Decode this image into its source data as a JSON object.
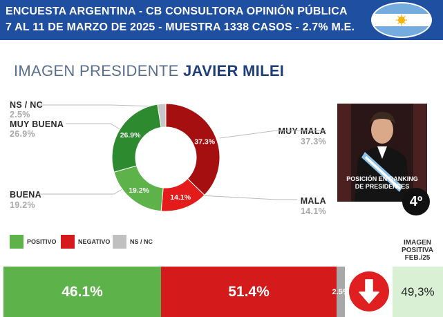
{
  "header": {
    "line1": "ENCUESTA ARGENTINA - CB CONSULTORA OPINIÓN PÚBLICA",
    "line2": "7 AL 11 DE MARZO  DE 2025 - MUESTRA 1338 CASOS - 2.7% M.E."
  },
  "subtitle": {
    "prefix": "IMAGEN PRESIDENTE ",
    "name": "JAVIER MILEI"
  },
  "chart_data": {
    "type": "pie",
    "variant": "donut",
    "slices": [
      {
        "label": "MUY MALA",
        "value": 37.3,
        "display": "37.3%",
        "color": "#a60f0f"
      },
      {
        "label": "MALA",
        "value": 14.1,
        "display": "14.1%",
        "color": "#e41b1b"
      },
      {
        "label": "BUENA",
        "value": 19.2,
        "display": "19.2%",
        "color": "#5db34a"
      },
      {
        "label": "MUY BUENA",
        "value": 26.9,
        "display": "26.9%",
        "color": "#2e8a2e"
      },
      {
        "label": "NS / NC",
        "value": 2.5,
        "display": "2.5%",
        "color": "#c8c8c8"
      }
    ]
  },
  "labels": {
    "nsnc": {
      "name": "NS / NC",
      "value": "2.5%"
    },
    "muy_buena": {
      "name": "MUY BUENA",
      "value": "26.9%"
    },
    "buena": {
      "name": "BUENA",
      "value": "19.2%"
    },
    "muy_mala": {
      "name": "MUY MALA",
      "value": "37.3%"
    },
    "mala": {
      "name": "MALA",
      "value": "14.1%"
    }
  },
  "legend": {
    "positivo": {
      "label": "POSITIVO",
      "color": "#5db34a"
    },
    "negativo": {
      "label": "NEGATIVO",
      "color": "#d41a1a"
    },
    "nsnc": {
      "label": "NS / NC",
      "color": "#c0c0c0"
    }
  },
  "photo": {
    "caption_line1": "POSICIÓN EN RANKING",
    "caption_line2": "DE PRESIDENTES",
    "rank": "4º"
  },
  "summary_bar": {
    "positivo": {
      "value": 46.1,
      "display": "46.1%",
      "color": "#5db34a"
    },
    "negativo": {
      "value": 51.4,
      "display": "51.4%",
      "color": "#d41a1a"
    },
    "nsnc": {
      "value": 2.5,
      "display": "2.5%",
      "color": "#a8a8a8"
    }
  },
  "trend": {
    "icon": "arrow-down-icon",
    "color": "#e02020"
  },
  "imagen_positiva": {
    "title_line1": "IMAGEN",
    "title_line2": "POSITIVA",
    "title_line3": "FEB./25",
    "value": "49,3%"
  }
}
